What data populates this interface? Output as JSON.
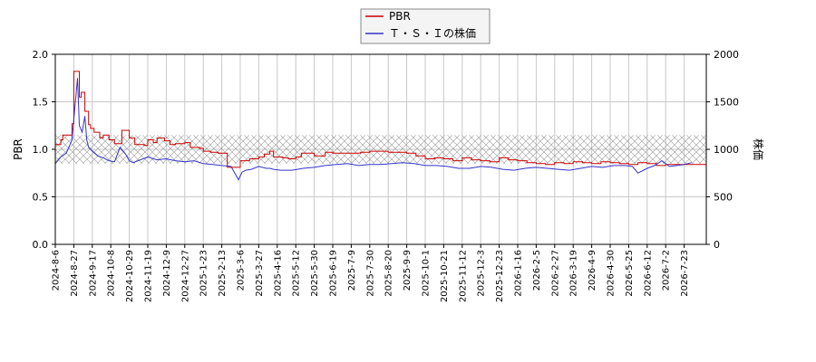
{
  "chart_data": {
    "type": "line",
    "title": "",
    "xlabel": "",
    "ylabel": "PBR",
    "ylabel_right": "株価",
    "ylim": [
      0,
      2.0
    ],
    "ylim_right": [
      0,
      2000
    ],
    "yticks": [
      "0.0",
      "0.5",
      "1.0",
      "1.5",
      "2.0"
    ],
    "yticks_right": [
      "0",
      "500",
      "1000",
      "1500",
      "2000"
    ],
    "x_tick_labels": [
      "2024-8-6",
      "2024-8-27",
      "2024-9-17",
      "2024-10-8",
      "2024-10-29",
      "2024-11-19",
      "2024-12-9",
      "2024-12-27",
      "2025-1-23",
      "2025-2-13",
      "2025-3-6",
      "2025-3-27",
      "2025-4-16",
      "2025-5-12",
      "2025-5-30",
      "2025-6-19",
      "2025-7-9",
      "2025-7-30",
      "2025-8-20",
      "2025-9-9",
      "2025-10-1",
      "2025-10-21",
      "2025-11-12",
      "2025-12-3",
      "2025-12-23",
      "2026-1-16",
      "2026-2-5",
      "2026-2-27",
      "2026-3-19",
      "2026-4-9",
      "2026-4-30",
      "2026-5-25",
      "2026-6-12",
      "2026-7-2",
      "2026-7-23"
    ],
    "grid": true,
    "band": {
      "from": 0.85,
      "to": 1.15,
      "style": "crosshatch"
    },
    "legend_position": "top-center",
    "series": [
      {
        "name": "PBR",
        "axis": "left",
        "color": "#cc0000",
        "x": [
          0,
          0.3,
          0.4,
          0.9,
          1,
          1.3,
          1.4,
          1.6,
          1.8,
          1.9,
          2.1,
          2.4,
          2.6,
          2.9,
          3.2,
          3.6,
          4,
          4.3,
          4.8,
          5,
          5.3,
          5.5,
          5.9,
          6.2,
          6.5,
          7,
          7.3,
          7.8,
          8,
          8.4,
          8.8,
          9.3,
          10,
          10.5,
          11,
          11.3,
          11.6,
          11.8,
          12,
          12.3,
          12.6,
          13,
          13.3,
          14,
          14.6,
          15,
          15.5,
          16,
          16.5,
          17,
          17.5,
          18,
          18.5,
          19,
          19.5,
          20,
          20.5,
          21,
          21.5,
          22,
          22.5,
          23,
          23.5,
          24,
          24.5,
          25,
          25.5,
          26,
          26.5,
          27,
          27.5,
          28,
          28.5,
          29,
          29.5,
          30,
          30.5,
          31,
          31.5,
          32,
          32.5,
          33,
          33.5,
          34,
          34.4
        ],
        "values": [
          1.05,
          1.1,
          1.15,
          1.27,
          1.82,
          1.55,
          1.6,
          1.4,
          1.26,
          1.22,
          1.18,
          1.12,
          1.15,
          1.1,
          1.06,
          1.2,
          1.12,
          1.05,
          1.04,
          1.1,
          1.07,
          1.12,
          1.09,
          1.05,
          1.06,
          1.07,
          1.02,
          1.01,
          0.98,
          0.97,
          0.96,
          0.81,
          0.88,
          0.9,
          0.92,
          0.95,
          0.98,
          0.92,
          0.92,
          0.91,
          0.9,
          0.92,
          0.96,
          0.93,
          0.97,
          0.96,
          0.96,
          0.96,
          0.97,
          0.98,
          0.98,
          0.97,
          0.97,
          0.96,
          0.93,
          0.9,
          0.91,
          0.9,
          0.88,
          0.91,
          0.89,
          0.88,
          0.87,
          0.91,
          0.89,
          0.88,
          0.86,
          0.85,
          0.84,
          0.86,
          0.85,
          0.87,
          0.86,
          0.85,
          0.87,
          0.86,
          0.85,
          0.84,
          0.86,
          0.85,
          0.83,
          0.84,
          0.84,
          0.84,
          0.84
        ]
      },
      {
        "name": "Ｔ・Ｓ・Ｉの株価",
        "axis": "right",
        "color": "#3333cc",
        "x": [
          0,
          0.3,
          0.6,
          0.9,
          1.2,
          1.3,
          1.45,
          1.6,
          1.7,
          1.8,
          2,
          2.3,
          2.6,
          2.9,
          3.2,
          3.5,
          3.8,
          4,
          4.2,
          4.6,
          5,
          5.5,
          6,
          6.5,
          7,
          7.5,
          8,
          8.5,
          9,
          9.5,
          9.9,
          10.1,
          10.3,
          10.6,
          11,
          11.4,
          11.6,
          11.8,
          12.2,
          12.8,
          13.4,
          14,
          14.6,
          15.2,
          15.8,
          16.4,
          17,
          17.6,
          18.2,
          18.8,
          19.4,
          20,
          20.6,
          21.2,
          21.8,
          22.4,
          23,
          23.6,
          24.2,
          24.8,
          25.4,
          26,
          26.6,
          27.2,
          27.8,
          28.4,
          29,
          29.6,
          30.2,
          30.8,
          31.2,
          31.5,
          32,
          32.4,
          32.8,
          33.2,
          33.6,
          34,
          34.4
        ],
        "values": [
          850,
          920,
          960,
          1100,
          1750,
          1250,
          1180,
          1350,
          1100,
          1020,
          980,
          930,
          910,
          880,
          870,
          1020,
          950,
          880,
          860,
          890,
          920,
          890,
          900,
          880,
          870,
          880,
          850,
          840,
          830,
          820,
          680,
          760,
          780,
          790,
          820,
          800,
          800,
          790,
          780,
          780,
          800,
          810,
          830,
          840,
          850,
          830,
          840,
          840,
          850,
          860,
          850,
          830,
          830,
          820,
          800,
          800,
          820,
          810,
          790,
          780,
          800,
          810,
          800,
          790,
          780,
          800,
          820,
          810,
          830,
          830,
          820,
          750,
          800,
          830,
          880,
          820,
          830,
          840,
          860
        ]
      }
    ]
  }
}
